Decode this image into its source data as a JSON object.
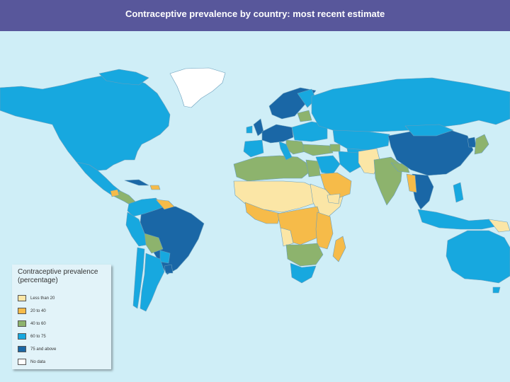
{
  "header": {
    "title": "Contraceptive prevalence by country: most recent estimate"
  },
  "colors": {
    "ocean": "#cfeef7",
    "header_bg": "#58579b",
    "border": "#7fa9c0"
  },
  "legend": {
    "title": "Contraceptive prevalence (percentage)",
    "items": [
      {
        "label": "Less than 20",
        "color": "#fbe6a6"
      },
      {
        "label": "20 to 40",
        "color": "#f6bb49"
      },
      {
        "label": "40 to 60",
        "color": "#8db36d"
      },
      {
        "label": "60 to 75",
        "color": "#17a8df"
      },
      {
        "label": "75 and above",
        "color": "#1a67a6"
      },
      {
        "label": "No data",
        "color": "#ffffff"
      }
    ]
  }
}
